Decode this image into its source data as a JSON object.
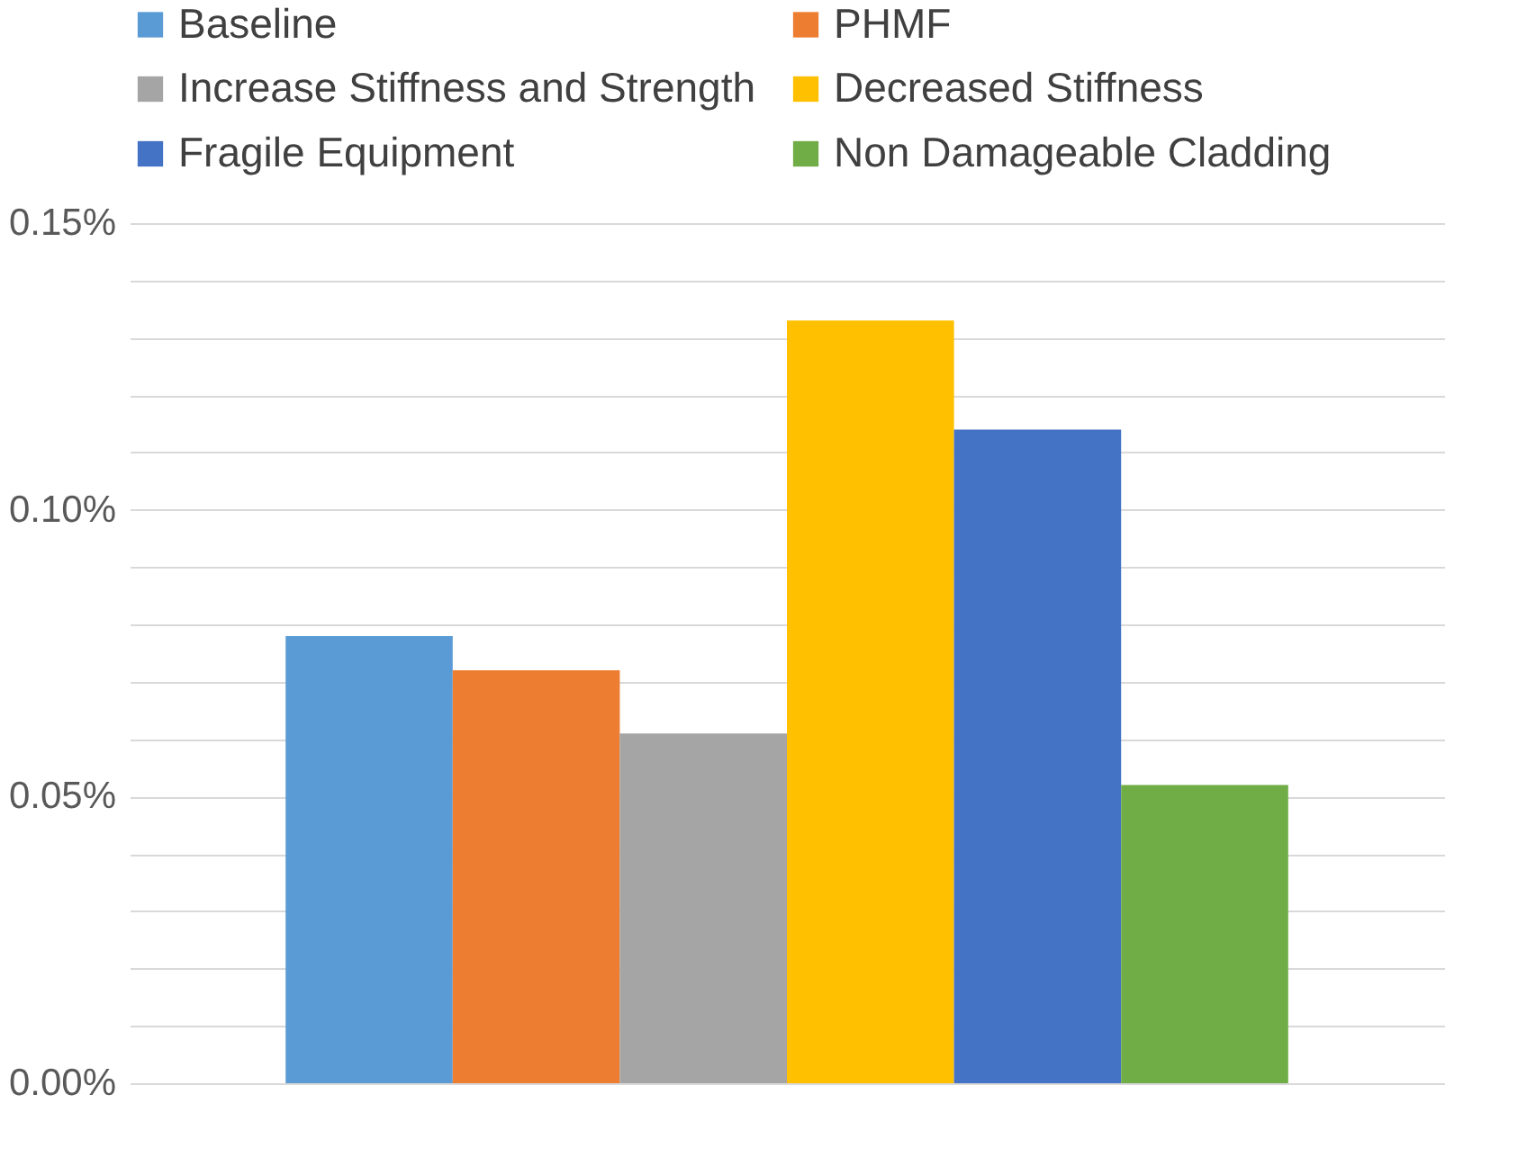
{
  "chart_data": {
    "type": "bar",
    "categories": [
      null
    ],
    "series": [
      {
        "name": "Baseline",
        "color": "#5b9bd5",
        "values": [
          0.078
        ]
      },
      {
        "name": "PHMF",
        "color": "#ed7d31",
        "values": [
          0.072
        ]
      },
      {
        "name": "Increase Stiffness and Strength",
        "color": "#a5a5a5",
        "values": [
          0.061
        ]
      },
      {
        "name": "Decreased Stiffness",
        "color": "#ffc000",
        "values": [
          0.133
        ]
      },
      {
        "name": "Fragile Equipment",
        "color": "#4472c4",
        "values": [
          0.114
        ]
      },
      {
        "name": "Non Damageable Cladding",
        "color": "#70ad47",
        "values": [
          0.052
        ]
      }
    ],
    "ylim": [
      0,
      0.15
    ],
    "yticks": [
      {
        "value": 0,
        "label": "0.00%"
      },
      {
        "value": 0.01,
        "label": null
      },
      {
        "value": 0.02,
        "label": null
      },
      {
        "value": 0.03,
        "label": null
      },
      {
        "value": 0.04,
        "label": null
      },
      {
        "value": 0.05,
        "label": "0.05%"
      },
      {
        "value": 0.06,
        "label": null
      },
      {
        "value": 0.07,
        "label": null
      },
      {
        "value": 0.08,
        "label": null
      },
      {
        "value": 0.09,
        "label": null
      },
      {
        "value": 0.1,
        "label": "0.10%"
      },
      {
        "value": 0.11,
        "label": null
      },
      {
        "value": 0.12,
        "label": null
      },
      {
        "value": 0.13,
        "label": null
      },
      {
        "value": 0.14,
        "label": null
      },
      {
        "value": 0.15,
        "label": "0.15%"
      }
    ],
    "grid": true,
    "legend": "top"
  }
}
